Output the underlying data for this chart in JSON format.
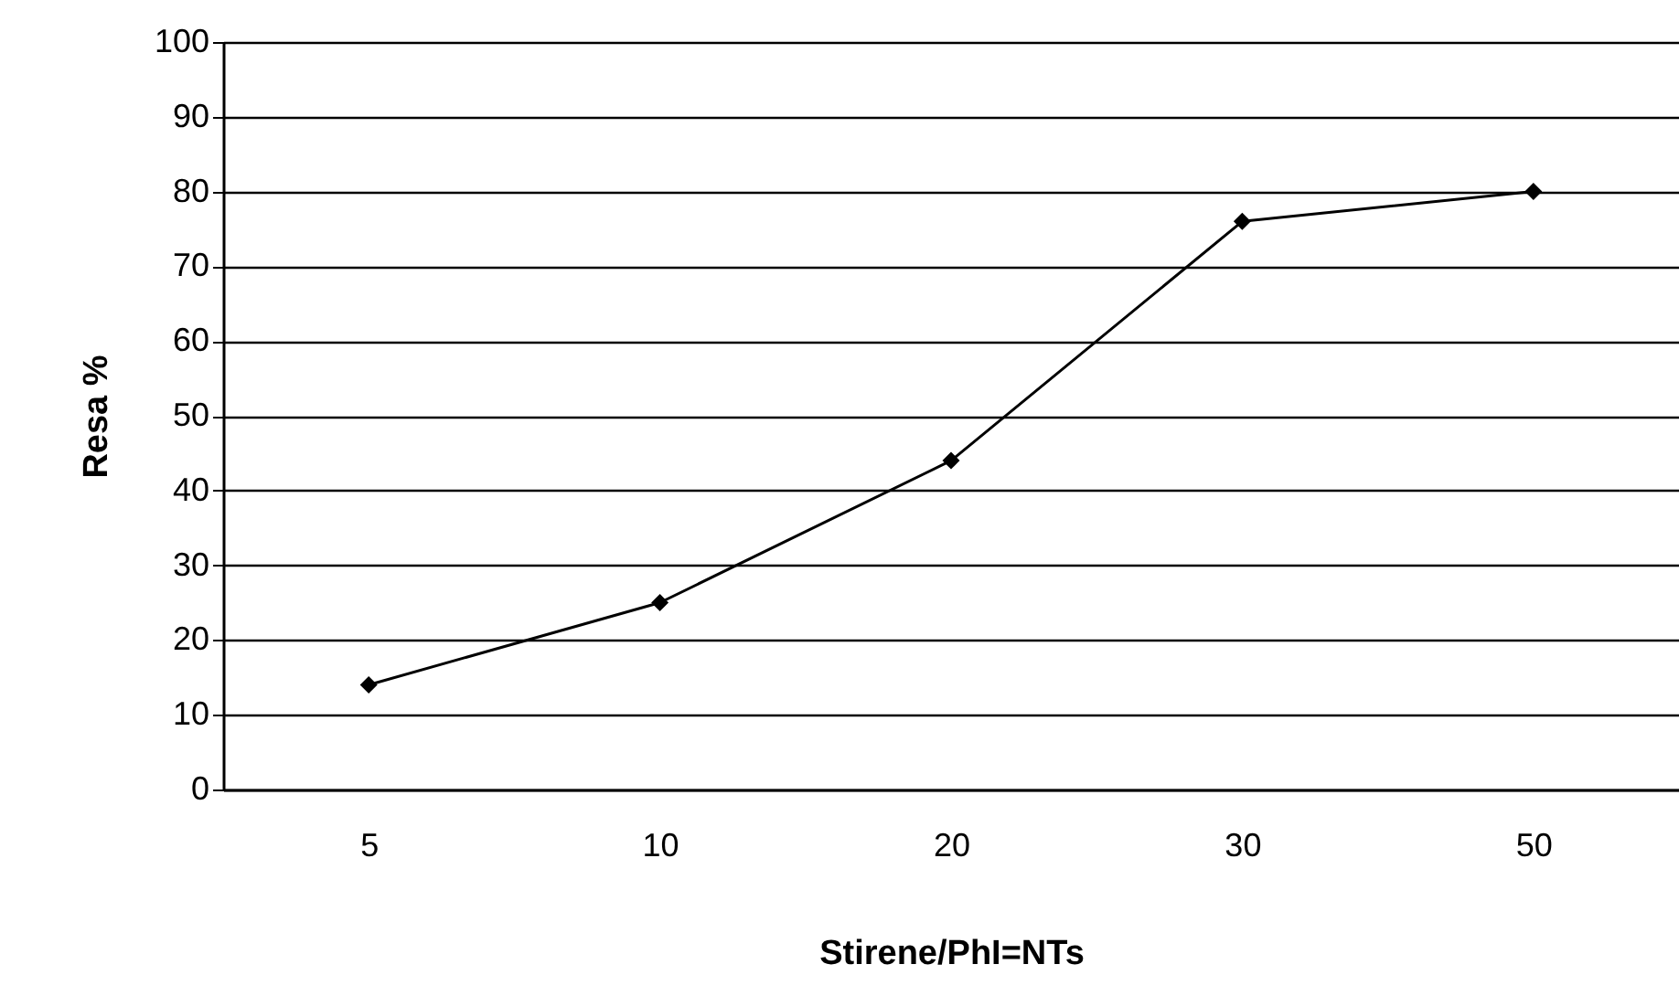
{
  "chart_data": {
    "type": "line",
    "xlabel": "Stirene/PhI=NTs",
    "ylabel": "Resa %",
    "categories": [
      "5",
      "10",
      "20",
      "30",
      "50"
    ],
    "series": [
      {
        "color": "#000000",
        "values": [
          14,
          25,
          44,
          76,
          80
        ]
      }
    ],
    "ylim": [
      0,
      100
    ],
    "yticks": [
      0,
      10,
      20,
      30,
      40,
      50,
      60,
      70,
      80,
      90,
      100
    ],
    "grid": "y",
    "marker": "diamond",
    "line_style": "solid"
  }
}
